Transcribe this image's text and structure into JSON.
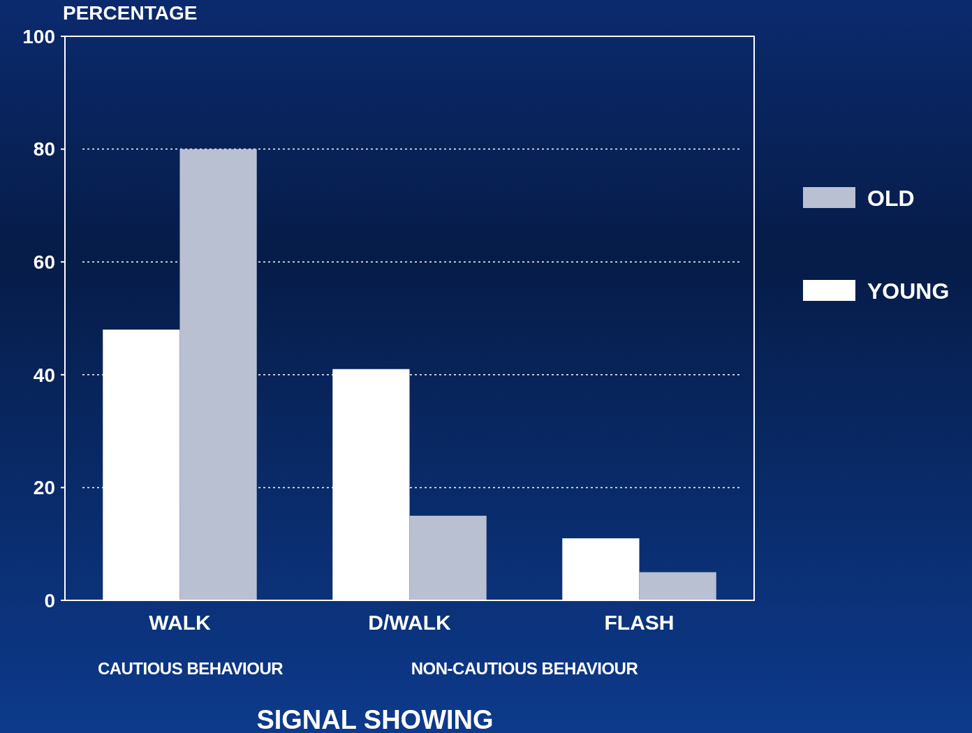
{
  "chart_data": {
    "type": "bar",
    "xlabel": "SIGNAL SHOWING",
    "ylabel": "PERCENTAGE",
    "categories": [
      "WALK",
      "D/WALK",
      "FLASH"
    ],
    "series": [
      {
        "name": "YOUNG",
        "color": "#ffffff",
        "values": [
          48,
          41,
          11
        ]
      },
      {
        "name": "OLD",
        "color": "#b9c0d2",
        "values": [
          80,
          15,
          5
        ]
      }
    ],
    "ylim": [
      0,
      100
    ],
    "yticks": [
      0,
      20,
      40,
      60,
      80,
      100
    ],
    "grid": "y",
    "legend": "right",
    "annotations": [
      "CAUTIOUS BEHAVIOUR",
      "NON-CAUTIOUS BEHAVIOUR"
    ]
  }
}
